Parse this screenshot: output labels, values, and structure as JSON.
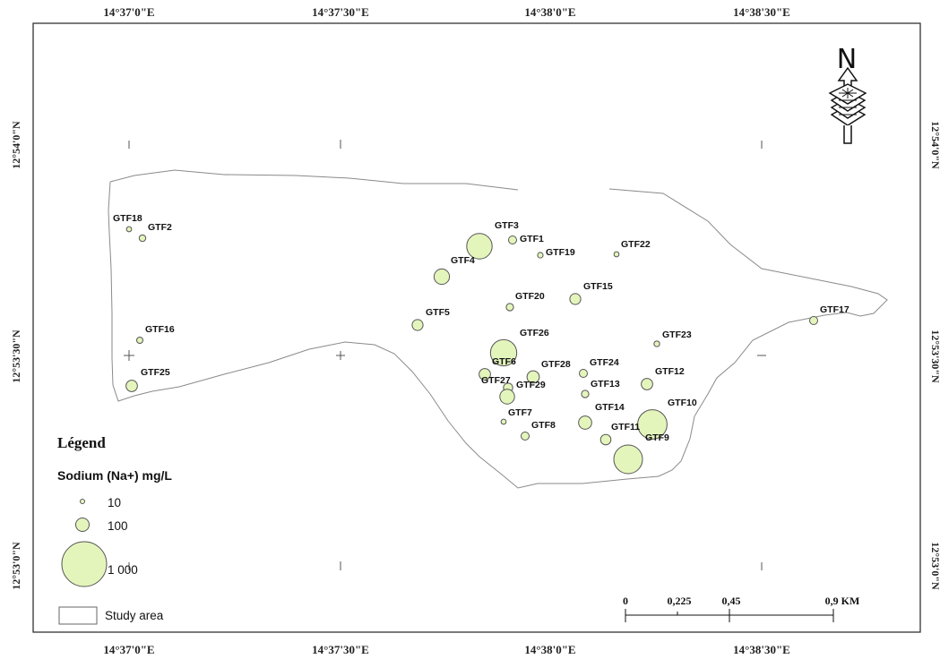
{
  "map": {
    "top_lon_labels": [
      "14°37'0\"E",
      "14°37'30\"E",
      "14°38'0\"E",
      "14°38'30\"E"
    ],
    "bottom_lon_labels": [
      "14°37'0\"E",
      "14°37'30\"E",
      "14°38'0\"E",
      "14°38'30\"E"
    ],
    "left_lat_labels": [
      "12°54'0\"N",
      "12°53'30\"N",
      "12°53'0\"N"
    ],
    "right_lat_labels": [
      "12°54'0\"N",
      "12°53'30\"N",
      "12°53'0\"N"
    ],
    "north_arrow_label": "N",
    "symbol_fill": "#e4f5bc",
    "symbol_stroke": "#555555",
    "boundary_color": "#8a8a8a"
  },
  "legend": {
    "title": "Légend",
    "subtitle": "Sodium (Na+) mg/L",
    "size_classes": [
      {
        "label": "10",
        "value": 10
      },
      {
        "label": "100",
        "value": 100
      },
      {
        "label": "1 000",
        "value": 1000
      }
    ],
    "area_label": "Study area"
  },
  "scale_bar": {
    "labels": [
      "0",
      "0,225",
      "0,45",
      "0,9 KM"
    ]
  },
  "sites": [
    {
      "name": "GTF18",
      "na": 12
    },
    {
      "name": "GTF2",
      "na": 20
    },
    {
      "name": "GTF16",
      "na": 18
    },
    {
      "name": "GTF25",
      "na": 60
    },
    {
      "name": "GTF3",
      "na": 300
    },
    {
      "name": "GTF1",
      "na": 30
    },
    {
      "name": "GTF19",
      "na": 14
    },
    {
      "name": "GTF22",
      "na": 12
    },
    {
      "name": "GTF4",
      "na": 110
    },
    {
      "name": "GTF20",
      "na": 25
    },
    {
      "name": "GTF15",
      "na": 55
    },
    {
      "name": "GTF5",
      "na": 55
    },
    {
      "name": "GTF17",
      "na": 30
    },
    {
      "name": "GTF26",
      "na": 320
    },
    {
      "name": "GTF23",
      "na": 15
    },
    {
      "name": "GTF6",
      "na": 60
    },
    {
      "name": "GTF28",
      "na": 70
    },
    {
      "name": "GTF24",
      "na": 30
    },
    {
      "name": "GTF12",
      "na": 60
    },
    {
      "name": "GTF27",
      "na": 40
    },
    {
      "name": "GTF29",
      "na": 100
    },
    {
      "name": "GTF13",
      "na": 25
    },
    {
      "name": "GTF7",
      "na": 12
    },
    {
      "name": "GTF14",
      "na": 80
    },
    {
      "name": "GTF10",
      "na": 400
    },
    {
      "name": "GTF8",
      "na": 30
    },
    {
      "name": "GTF11",
      "na": 50
    },
    {
      "name": "GTF9",
      "na": 380
    }
  ]
}
